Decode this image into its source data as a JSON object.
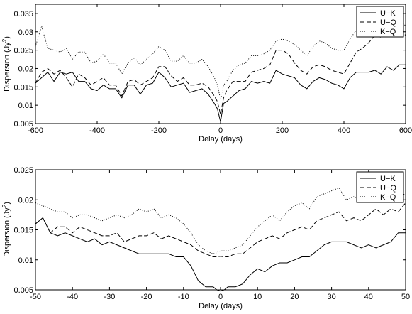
{
  "chart_data": [
    {
      "type": "line",
      "xlabel": "Delay (days)",
      "ylabel_main": "Dispersion (Jy",
      "ylabel_sup": "2",
      "ylabel_close": ")",
      "xlim": [
        -600,
        600
      ],
      "ylim": [
        0.005,
        0.0375
      ],
      "xticks": [
        -600,
        -400,
        -200,
        0,
        200,
        400,
        600
      ],
      "yticks": [
        0.005,
        0.01,
        0.015,
        0.02,
        0.025,
        0.03,
        0.035
      ],
      "legend_position": "top-right",
      "series": [
        {
          "name": "U−K",
          "style": "solid",
          "x": [
            -600,
            -580,
            -560,
            -540,
            -520,
            -500,
            -480,
            -460,
            -440,
            -420,
            -400,
            -380,
            -360,
            -340,
            -320,
            -300,
            -280,
            -260,
            -240,
            -220,
            -200,
            -180,
            -160,
            -140,
            -120,
            -100,
            -80,
            -60,
            -40,
            -20,
            -10,
            0,
            10,
            20,
            40,
            60,
            80,
            100,
            120,
            140,
            160,
            180,
            200,
            220,
            240,
            260,
            280,
            300,
            320,
            340,
            360,
            380,
            400,
            420,
            440,
            460,
            480,
            500,
            520,
            540,
            560,
            580,
            600
          ],
          "y": [
            0.016,
            0.0175,
            0.019,
            0.0165,
            0.019,
            0.0185,
            0.019,
            0.0165,
            0.0165,
            0.0145,
            0.014,
            0.0155,
            0.0145,
            0.0145,
            0.012,
            0.0155,
            0.0155,
            0.013,
            0.0155,
            0.016,
            0.019,
            0.0175,
            0.015,
            0.0155,
            0.016,
            0.0135,
            0.014,
            0.0145,
            0.013,
            0.0105,
            0.009,
            0.0055,
            0.0105,
            0.011,
            0.0125,
            0.014,
            0.0145,
            0.0165,
            0.016,
            0.0165,
            0.016,
            0.0195,
            0.0185,
            0.018,
            0.0175,
            0.0155,
            0.0145,
            0.0165,
            0.0175,
            0.017,
            0.016,
            0.0155,
            0.0145,
            0.0175,
            0.019,
            0.019,
            0.019,
            0.0195,
            0.0185,
            0.0205,
            0.0195,
            0.021,
            0.021
          ]
        },
        {
          "name": "U−Q",
          "style": "dashed",
          "x": [
            -600,
            -580,
            -560,
            -540,
            -520,
            -500,
            -480,
            -460,
            -440,
            -420,
            -400,
            -380,
            -360,
            -340,
            -320,
            -300,
            -280,
            -260,
            -240,
            -220,
            -200,
            -180,
            -160,
            -140,
            -120,
            -100,
            -80,
            -60,
            -40,
            -20,
            -10,
            0,
            10,
            20,
            40,
            60,
            80,
            100,
            120,
            140,
            160,
            180,
            200,
            220,
            240,
            260,
            280,
            300,
            320,
            340,
            360,
            380,
            400,
            420,
            440,
            460,
            480,
            500,
            520,
            540,
            560,
            580,
            600
          ],
          "y": [
            0.016,
            0.019,
            0.02,
            0.0185,
            0.0195,
            0.0175,
            0.015,
            0.0185,
            0.0175,
            0.0155,
            0.0165,
            0.0175,
            0.0155,
            0.0155,
            0.0125,
            0.0165,
            0.017,
            0.0155,
            0.0165,
            0.0175,
            0.0205,
            0.0205,
            0.018,
            0.0165,
            0.0175,
            0.0155,
            0.0155,
            0.016,
            0.015,
            0.0125,
            0.011,
            0.0075,
            0.012,
            0.014,
            0.0165,
            0.0165,
            0.0165,
            0.019,
            0.0195,
            0.02,
            0.021,
            0.025,
            0.025,
            0.024,
            0.0215,
            0.0195,
            0.0185,
            0.0205,
            0.021,
            0.0205,
            0.0195,
            0.019,
            0.0185,
            0.0215,
            0.0245,
            0.0255,
            0.027,
            0.029,
            0.0285,
            0.031,
            0.032,
            0.031,
            0.029
          ]
        },
        {
          "name": "K−Q",
          "style": "dotted",
          "x": [
            -600,
            -580,
            -560,
            -540,
            -520,
            -500,
            -480,
            -460,
            -440,
            -420,
            -400,
            -380,
            -360,
            -340,
            -320,
            -300,
            -280,
            -260,
            -240,
            -220,
            -200,
            -180,
            -160,
            -140,
            -120,
            -100,
            -80,
            -60,
            -40,
            -20,
            -10,
            0,
            10,
            20,
            40,
            60,
            80,
            100,
            120,
            140,
            160,
            180,
            200,
            220,
            240,
            260,
            280,
            300,
            320,
            340,
            360,
            380,
            400,
            420,
            440,
            460,
            480,
            500,
            520,
            540,
            560,
            580,
            600
          ],
          "y": [
            0.026,
            0.0315,
            0.0255,
            0.025,
            0.0245,
            0.0255,
            0.0225,
            0.0245,
            0.0245,
            0.0215,
            0.022,
            0.024,
            0.0215,
            0.0215,
            0.0185,
            0.0215,
            0.023,
            0.021,
            0.0225,
            0.024,
            0.026,
            0.025,
            0.022,
            0.022,
            0.0235,
            0.0215,
            0.0215,
            0.0225,
            0.0205,
            0.0175,
            0.0155,
            0.0115,
            0.0155,
            0.0165,
            0.0195,
            0.021,
            0.0215,
            0.0235,
            0.0235,
            0.024,
            0.025,
            0.0275,
            0.028,
            0.0275,
            0.0265,
            0.025,
            0.0235,
            0.026,
            0.0275,
            0.027,
            0.0255,
            0.025,
            0.025,
            0.028,
            0.0305,
            0.0315,
            0.0325,
            0.033,
            0.0315,
            0.034,
            0.036,
            0.034,
            0.0315
          ]
        }
      ]
    },
    {
      "type": "line",
      "xlabel": "Delay (days)",
      "ylabel_main": "Dispersion (Jy",
      "ylabel_sup": "2",
      "ylabel_close": ")",
      "xlim": [
        -50,
        50
      ],
      "ylim": [
        0.005,
        0.025
      ],
      "xticks": [
        -50,
        -40,
        -30,
        -20,
        -10,
        0,
        10,
        20,
        30,
        40,
        50
      ],
      "yticks": [
        0.005,
        0.01,
        0.015,
        0.02,
        0.025
      ],
      "legend_position": "top-right",
      "series": [
        {
          "name": "U−K",
          "style": "solid",
          "x": [
            -50,
            -48,
            -46,
            -44,
            -42,
            -40,
            -38,
            -36,
            -34,
            -32,
            -30,
            -28,
            -26,
            -24,
            -22,
            -20,
            -18,
            -16,
            -14,
            -12,
            -10,
            -8,
            -6,
            -4,
            -2,
            -1,
            0,
            1,
            2,
            4,
            6,
            8,
            10,
            12,
            14,
            16,
            18,
            20,
            22,
            24,
            26,
            28,
            30,
            32,
            34,
            36,
            38,
            40,
            42,
            44,
            46,
            48,
            50
          ],
          "y": [
            0.016,
            0.017,
            0.0145,
            0.014,
            0.0145,
            0.014,
            0.0135,
            0.013,
            0.0135,
            0.0125,
            0.013,
            0.0125,
            0.012,
            0.0115,
            0.011,
            0.011,
            0.011,
            0.011,
            0.011,
            0.0105,
            0.0105,
            0.009,
            0.0065,
            0.0055,
            0.0055,
            0.005,
            0.0048,
            0.005,
            0.0055,
            0.0055,
            0.006,
            0.0075,
            0.0085,
            0.008,
            0.009,
            0.0095,
            0.0095,
            0.01,
            0.0105,
            0.0105,
            0.0115,
            0.0125,
            0.013,
            0.013,
            0.013,
            0.0125,
            0.012,
            0.0125,
            0.012,
            0.0125,
            0.013,
            0.0145,
            0.0145
          ]
        },
        {
          "name": "U−Q",
          "style": "dashed",
          "x": [
            -50,
            -48,
            -46,
            -44,
            -42,
            -40,
            -38,
            -36,
            -34,
            -32,
            -30,
            -28,
            -26,
            -24,
            -22,
            -20,
            -18,
            -16,
            -14,
            -12,
            -10,
            -8,
            -6,
            -4,
            -2,
            -1,
            0,
            1,
            2,
            4,
            6,
            8,
            10,
            12,
            14,
            16,
            18,
            20,
            22,
            24,
            26,
            28,
            30,
            32,
            34,
            36,
            38,
            40,
            42,
            44,
            46,
            48,
            50
          ],
          "y": [
            0.016,
            0.017,
            0.0145,
            0.0155,
            0.0155,
            0.0145,
            0.0155,
            0.015,
            0.0145,
            0.014,
            0.014,
            0.0145,
            0.013,
            0.0135,
            0.014,
            0.014,
            0.0145,
            0.0135,
            0.014,
            0.0135,
            0.013,
            0.0125,
            0.0115,
            0.011,
            0.0105,
            0.0105,
            0.0106,
            0.0105,
            0.0105,
            0.011,
            0.011,
            0.012,
            0.013,
            0.0135,
            0.014,
            0.0135,
            0.0145,
            0.015,
            0.0155,
            0.015,
            0.0165,
            0.017,
            0.0175,
            0.018,
            0.0165,
            0.017,
            0.0165,
            0.0175,
            0.0185,
            0.0175,
            0.0185,
            0.018,
            0.0195
          ]
        },
        {
          "name": "K−Q",
          "style": "dotted",
          "x": [
            -50,
            -48,
            -46,
            -44,
            -42,
            -40,
            -38,
            -36,
            -34,
            -32,
            -30,
            -28,
            -26,
            -24,
            -22,
            -20,
            -18,
            -16,
            -14,
            -12,
            -10,
            -8,
            -6,
            -4,
            -2,
            -1,
            0,
            1,
            2,
            4,
            6,
            8,
            10,
            12,
            14,
            16,
            18,
            20,
            22,
            24,
            26,
            28,
            30,
            32,
            34,
            36,
            38,
            40,
            42,
            44,
            46,
            48,
            50
          ],
          "y": [
            0.0195,
            0.019,
            0.0185,
            0.018,
            0.018,
            0.017,
            0.0175,
            0.0175,
            0.017,
            0.0165,
            0.017,
            0.0175,
            0.017,
            0.0175,
            0.0185,
            0.018,
            0.0185,
            0.017,
            0.0175,
            0.017,
            0.016,
            0.0145,
            0.0125,
            0.0115,
            0.011,
            0.0112,
            0.0115,
            0.0115,
            0.0115,
            0.012,
            0.0125,
            0.014,
            0.0155,
            0.0165,
            0.0175,
            0.0165,
            0.018,
            0.019,
            0.0195,
            0.0185,
            0.0205,
            0.021,
            0.0215,
            0.022,
            0.02,
            0.0205,
            0.02,
            0.0205,
            0.0215,
            0.0205,
            0.021,
            0.0205,
            0.021
          ]
        }
      ]
    }
  ]
}
